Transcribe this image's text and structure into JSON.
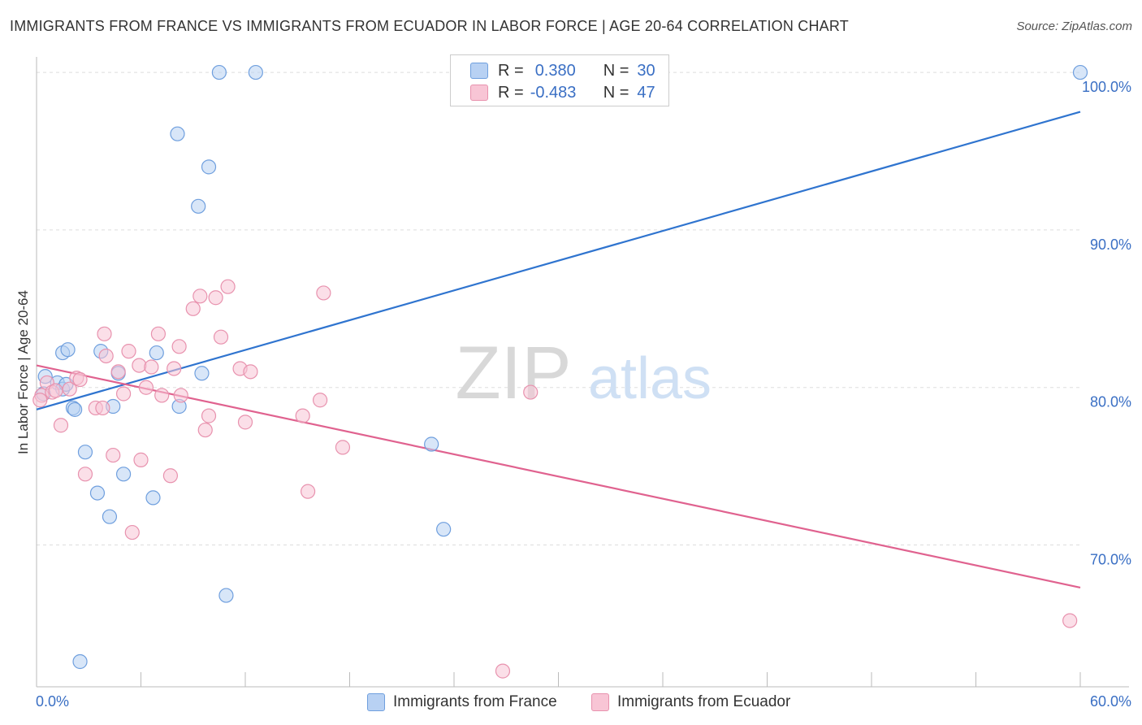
{
  "title": "IMMIGRANTS FROM FRANCE VS IMMIGRANTS FROM ECUADOR IN LABOR FORCE | AGE 20-64 CORRELATION CHART",
  "source": "Source: ZipAtlas.com",
  "watermark": {
    "zip": "ZIP",
    "atlas": "atlas"
  },
  "legend": {
    "france": {
      "r_label": "R =",
      "r_value": "0.380",
      "n_label": "N =",
      "n_value": "30"
    },
    "ecuador": {
      "r_label": "R =",
      "r_value": "-0.483",
      "n_label": "N =",
      "n_value": "47"
    }
  },
  "bottom_legend": {
    "france": "Immigrants from France",
    "ecuador": "Immigrants from Ecuador"
  },
  "colors": {
    "france_fill": "#b8d1f3",
    "france_stroke": "#6f9fde",
    "france_line": "#2f74cf",
    "ecuador_fill": "#f8c5d5",
    "ecuador_stroke": "#e892ae",
    "ecuador_line": "#e0628f",
    "axis_text": "#3a6fc4",
    "grid": "#dddddd"
  },
  "chart_data": {
    "type": "scatter",
    "title": "IMMIGRANTS FROM FRANCE VS IMMIGRANTS FROM ECUADOR IN LABOR FORCE | AGE 20-64 CORRELATION CHART",
    "xlabel": "",
    "ylabel": "In Labor Force | Age 20-64",
    "xlim": [
      0,
      60
    ],
    "ylim": [
      61,
      101.5
    ],
    "x_tick_labels": [
      {
        "value": 0,
        "label": "0.0%"
      },
      {
        "value": 60,
        "label": "60.0%"
      }
    ],
    "y_tick_labels": [
      {
        "value": 70,
        "label": "70.0%"
      },
      {
        "value": 80,
        "label": "80.0%"
      },
      {
        "value": 90,
        "label": "90.0%"
      },
      {
        "value": 100,
        "label": "100.0%"
      }
    ],
    "x_minor_ticks": [
      0,
      6,
      12,
      18,
      24,
      30,
      36,
      42,
      48,
      54,
      60
    ],
    "series": [
      {
        "name": "Immigrants from France",
        "color": "#6f9fde",
        "points": [
          [
            0.5,
            80.7
          ],
          [
            1.2,
            80.3
          ],
          [
            1.5,
            79.9
          ],
          [
            1.5,
            82.2
          ],
          [
            1.7,
            80.2
          ],
          [
            1.8,
            82.4
          ],
          [
            2.1,
            78.7
          ],
          [
            2.2,
            78.6
          ],
          [
            2.8,
            75.9
          ],
          [
            3.5,
            73.3
          ],
          [
            3.7,
            82.3
          ],
          [
            4.2,
            71.8
          ],
          [
            4.4,
            78.8
          ],
          [
            4.7,
            80.9
          ],
          [
            5.0,
            74.5
          ],
          [
            6.7,
            73.0
          ],
          [
            6.9,
            82.2
          ],
          [
            8.1,
            96.1
          ],
          [
            8.2,
            78.8
          ],
          [
            9.3,
            91.5
          ],
          [
            9.5,
            80.9
          ],
          [
            9.9,
            94.0
          ],
          [
            10.5,
            100.0
          ],
          [
            10.9,
            66.8
          ],
          [
            12.6,
            100.0
          ],
          [
            2.5,
            62.6
          ],
          [
            22.7,
            76.4
          ],
          [
            23.4,
            71.0
          ],
          [
            60.0,
            100.0
          ],
          [
            0.4,
            79.6
          ]
        ],
        "trend": {
          "x": [
            0,
            60
          ],
          "y": [
            78.6,
            97.5
          ]
        }
      },
      {
        "name": "Immigrants from Ecuador",
        "color": "#e892ae",
        "points": [
          [
            0.3,
            79.5
          ],
          [
            0.6,
            80.3
          ],
          [
            0.9,
            79.7
          ],
          [
            1.1,
            79.8
          ],
          [
            1.4,
            77.6
          ],
          [
            1.9,
            79.9
          ],
          [
            2.3,
            80.6
          ],
          [
            2.5,
            80.5
          ],
          [
            2.8,
            74.5
          ],
          [
            3.4,
            78.7
          ],
          [
            3.8,
            78.7
          ],
          [
            3.9,
            83.4
          ],
          [
            4.0,
            82.0
          ],
          [
            4.4,
            75.7
          ],
          [
            4.7,
            81.0
          ],
          [
            5.0,
            79.6
          ],
          [
            5.3,
            82.3
          ],
          [
            5.5,
            70.8
          ],
          [
            5.9,
            81.4
          ],
          [
            6.0,
            75.4
          ],
          [
            6.3,
            80.0
          ],
          [
            6.6,
            81.3
          ],
          [
            7.0,
            83.4
          ],
          [
            7.2,
            79.5
          ],
          [
            7.7,
            74.4
          ],
          [
            7.9,
            81.2
          ],
          [
            8.2,
            82.6
          ],
          [
            8.3,
            79.5
          ],
          [
            9.0,
            85.0
          ],
          [
            9.4,
            85.8
          ],
          [
            9.7,
            77.3
          ],
          [
            9.9,
            78.2
          ],
          [
            10.3,
            85.7
          ],
          [
            10.6,
            83.2
          ],
          [
            11.0,
            86.4
          ],
          [
            11.7,
            81.2
          ],
          [
            12.0,
            77.8
          ],
          [
            12.3,
            81.0
          ],
          [
            15.3,
            78.2
          ],
          [
            15.6,
            73.4
          ],
          [
            16.3,
            79.2
          ],
          [
            16.5,
            86.0
          ],
          [
            17.6,
            76.2
          ],
          [
            28.4,
            79.7
          ],
          [
            59.4,
            65.2
          ],
          [
            26.8,
            62.0
          ],
          [
            0.2,
            79.2
          ]
        ],
        "trend": {
          "x": [
            0,
            60
          ],
          "y": [
            81.4,
            67.3
          ]
        }
      }
    ]
  }
}
